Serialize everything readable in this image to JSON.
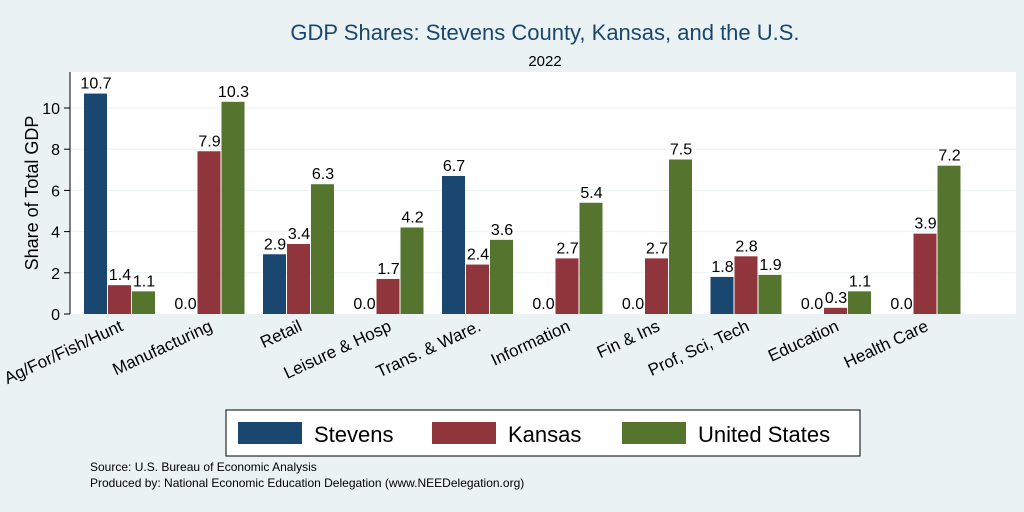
{
  "chart_data": {
    "type": "bar",
    "title": "GDP Shares: Stevens County, Kansas, and the U.S.",
    "subtitle": "2022",
    "xlabel": "",
    "ylabel": "Share of Total GDP",
    "ylim": [
      0,
      12
    ],
    "yticks": [
      0,
      2,
      4,
      6,
      8,
      10
    ],
    "grid": true,
    "legend_position": "bottom",
    "categories": [
      "Ag/For/Fish/Hunt",
      "Manufacturing",
      "Retail",
      "Leisure & Hosp",
      "Trans. & Ware.",
      "Information",
      "Fin & Ins",
      "Prof, Sci, Tech",
      "Education",
      "Health Care"
    ],
    "series": [
      {
        "name": "Stevens",
        "color": "#1a476f",
        "values": [
          10.7,
          0.0,
          2.9,
          0.0,
          6.7,
          0.0,
          0.0,
          1.8,
          0.0,
          0.0
        ]
      },
      {
        "name": "Kansas",
        "color": "#90353b",
        "values": [
          1.4,
          7.9,
          3.4,
          1.7,
          2.4,
          2.7,
          2.7,
          2.8,
          0.3,
          3.9
        ]
      },
      {
        "name": "United States",
        "color": "#55752f",
        "values": [
          1.1,
          10.3,
          6.3,
          4.2,
          3.6,
          5.4,
          7.5,
          1.9,
          1.1,
          7.2
        ]
      }
    ]
  },
  "source_note": "Source: U.S. Bureau of Economic Analysis",
  "produced_note": "Produced by: National Economic Education Delegation (www.NEEDelegation.org)"
}
